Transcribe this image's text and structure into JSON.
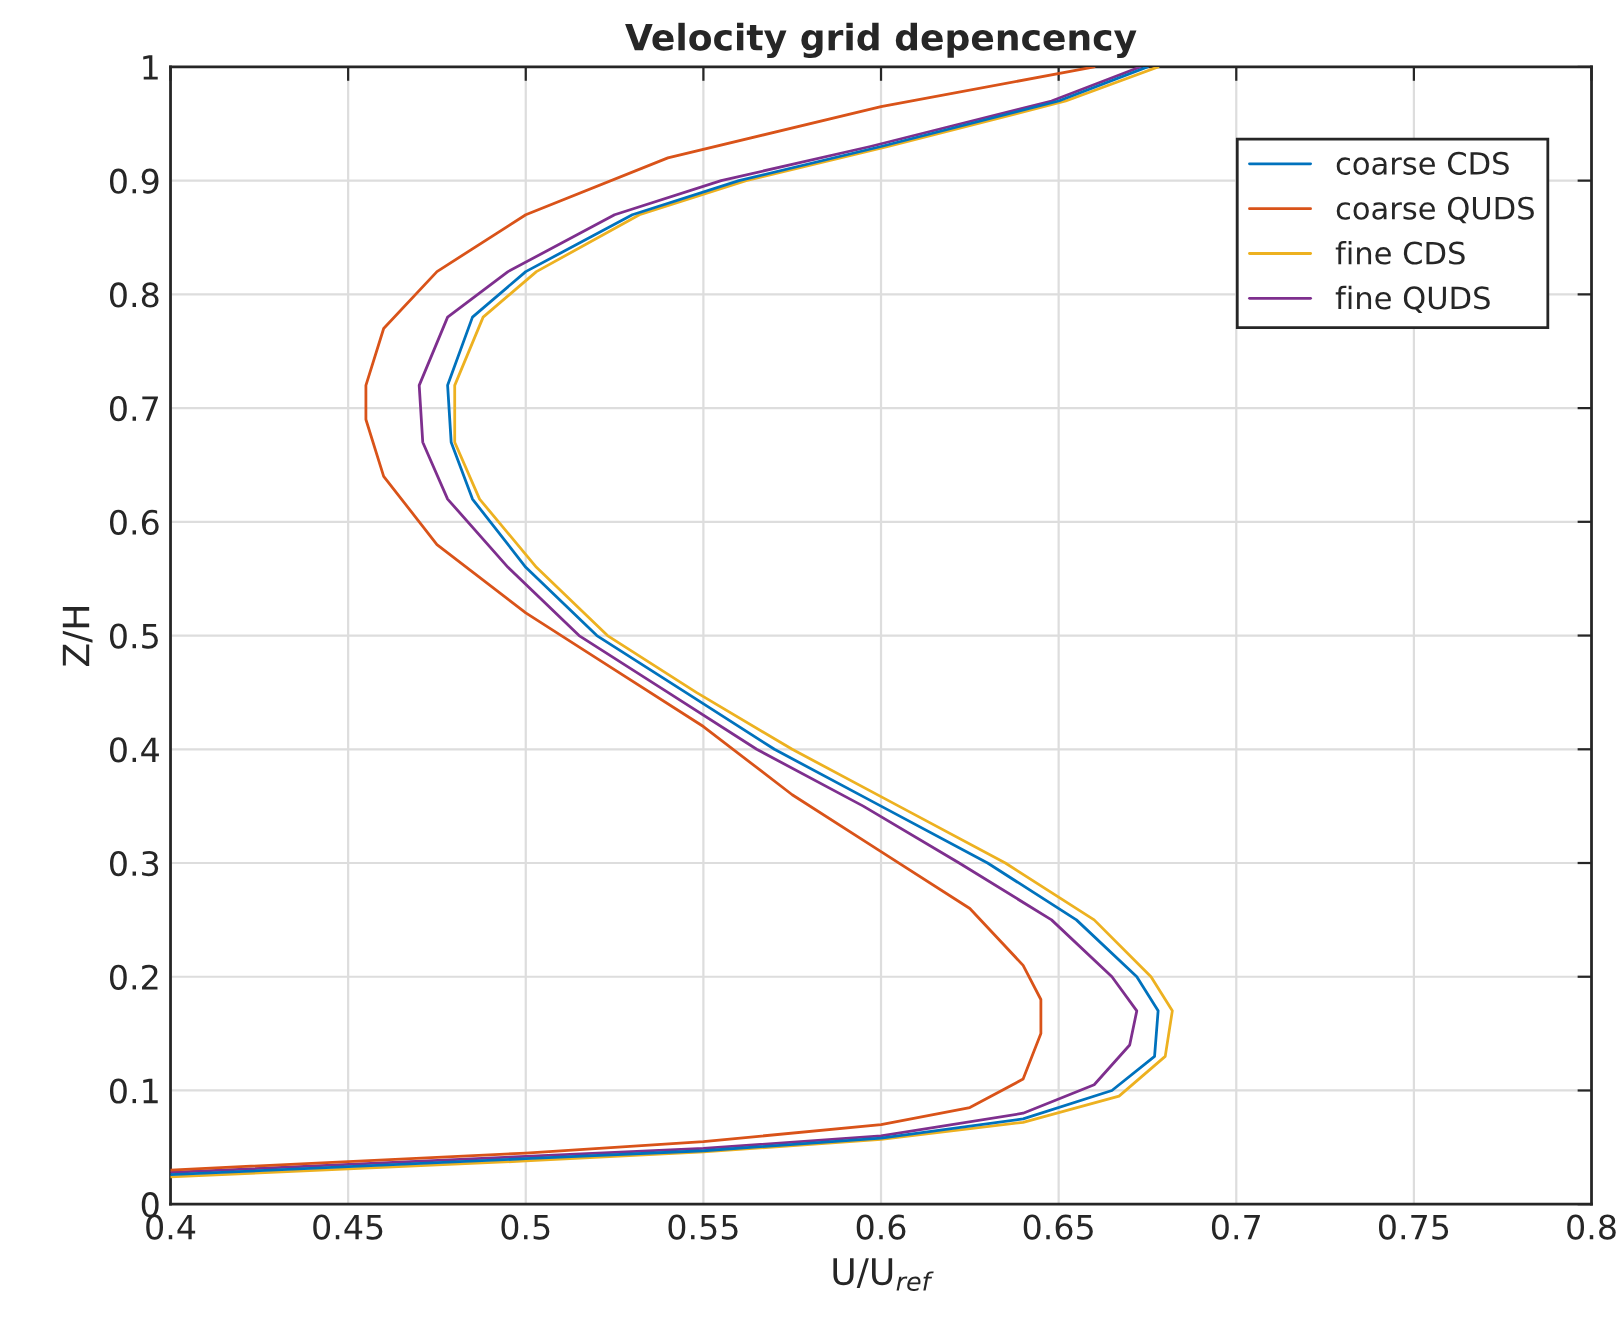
{
  "chart_data": {
    "type": "line",
    "title": "Velocity grid depencency",
    "xlabel": "U/U$_{ref}$",
    "ylabel": "Z/H",
    "xlim": [
      0.4,
      0.8
    ],
    "ylim": [
      0,
      1
    ],
    "xticks": [
      0.4,
      0.45,
      0.5,
      0.55,
      0.6,
      0.65,
      0.7,
      0.75,
      0.8
    ],
    "yticks": [
      0,
      0.1,
      0.2,
      0.3,
      0.4,
      0.5,
      0.6,
      0.7,
      0.8,
      0.9,
      1
    ],
    "grid": true,
    "legend": "top right",
    "marker": "none",
    "line_style": "solid",
    "series": [
      {
        "name": "coarse CDS",
        "color": "#0072bd",
        "x": [
          0.4,
          0.5,
          0.55,
          0.6,
          0.64,
          0.665,
          0.677,
          0.678,
          0.672,
          0.655,
          0.63,
          0.6,
          0.57,
          0.545,
          0.52,
          0.5,
          0.485,
          0.479,
          0.478,
          0.485,
          0.5,
          0.53,
          0.56,
          0.6,
          0.65,
          0.675
        ],
        "values": [
          0.026,
          0.04,
          0.047,
          0.058,
          0.075,
          0.1,
          0.13,
          0.17,
          0.2,
          0.25,
          0.3,
          0.35,
          0.4,
          0.45,
          0.5,
          0.56,
          0.62,
          0.67,
          0.72,
          0.78,
          0.82,
          0.87,
          0.9,
          0.93,
          0.97,
          1.0
        ]
      },
      {
        "name": "coarse QUDS",
        "color": "#d95319",
        "x": [
          0.4,
          0.5,
          0.55,
          0.6,
          0.625,
          0.64,
          0.645,
          0.645,
          0.64,
          0.625,
          0.6,
          0.575,
          0.55,
          0.52,
          0.5,
          0.475,
          0.46,
          0.455,
          0.455,
          0.46,
          0.475,
          0.5,
          0.54,
          0.6,
          0.66
        ],
        "values": [
          0.03,
          0.045,
          0.055,
          0.07,
          0.085,
          0.11,
          0.15,
          0.18,
          0.21,
          0.26,
          0.31,
          0.36,
          0.42,
          0.48,
          0.52,
          0.58,
          0.64,
          0.69,
          0.72,
          0.77,
          0.82,
          0.87,
          0.92,
          0.965,
          1.0
        ]
      },
      {
        "name": "fine CDS",
        "color": "#edb120",
        "x": [
          0.4,
          0.5,
          0.55,
          0.6,
          0.64,
          0.667,
          0.68,
          0.682,
          0.676,
          0.66,
          0.635,
          0.605,
          0.575,
          0.548,
          0.523,
          0.503,
          0.487,
          0.48,
          0.48,
          0.488,
          0.503,
          0.532,
          0.562,
          0.602,
          0.652,
          0.678
        ],
        "values": [
          0.024,
          0.038,
          0.046,
          0.057,
          0.072,
          0.095,
          0.13,
          0.17,
          0.2,
          0.25,
          0.3,
          0.35,
          0.4,
          0.45,
          0.5,
          0.56,
          0.62,
          0.67,
          0.72,
          0.78,
          0.82,
          0.87,
          0.9,
          0.93,
          0.97,
          1.0
        ]
      },
      {
        "name": "fine QUDS",
        "color": "#7e2f8e",
        "x": [
          0.4,
          0.5,
          0.55,
          0.6,
          0.64,
          0.66,
          0.67,
          0.672,
          0.665,
          0.648,
          0.622,
          0.595,
          0.565,
          0.54,
          0.515,
          0.495,
          0.478,
          0.471,
          0.47,
          0.478,
          0.495,
          0.525,
          0.555,
          0.597,
          0.648,
          0.673
        ],
        "values": [
          0.028,
          0.042,
          0.049,
          0.06,
          0.08,
          0.105,
          0.14,
          0.17,
          0.2,
          0.25,
          0.3,
          0.35,
          0.4,
          0.45,
          0.5,
          0.56,
          0.62,
          0.67,
          0.72,
          0.78,
          0.82,
          0.87,
          0.9,
          0.93,
          0.97,
          1.0
        ]
      }
    ]
  }
}
